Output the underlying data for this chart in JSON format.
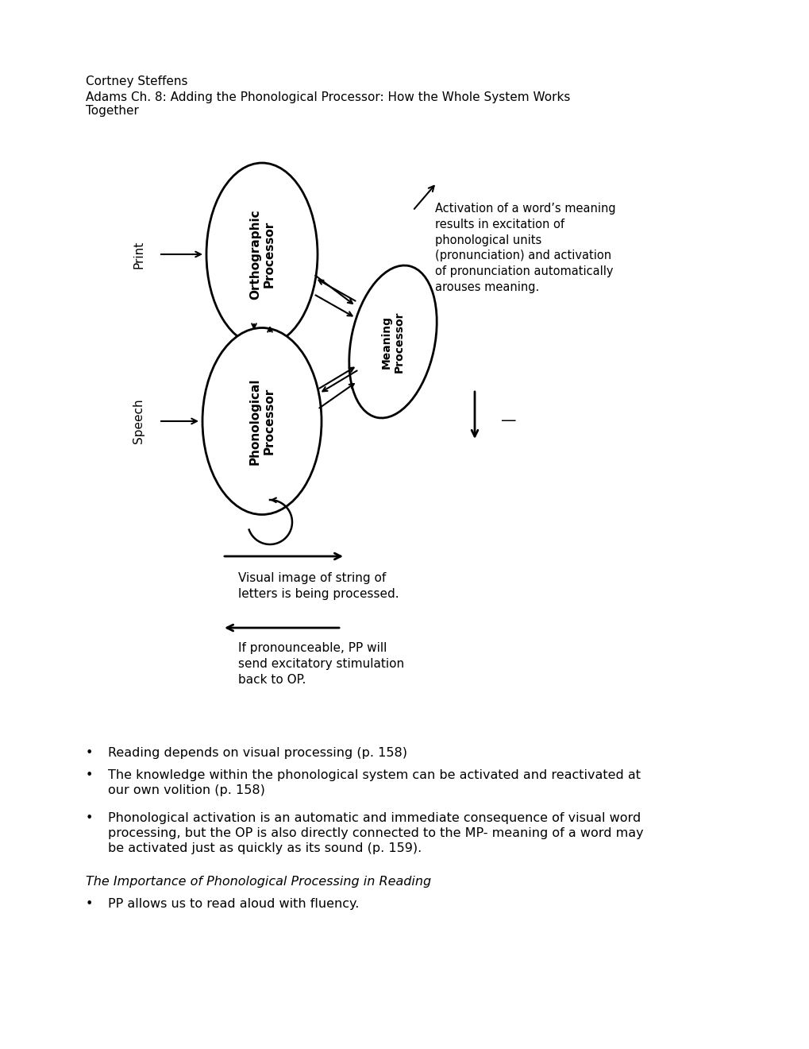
{
  "bg_color": "#ffffff",
  "header_name": "Cortney Steffens",
  "header_title": "Adams Ch. 8: Adding the Phonological Processor: How the Whole System Works\nTogether",
  "orth_label": "Orthographic\nProcessor",
  "phono_label": "Phonological\nProcessor",
  "meaning_label": "Meaning\nProcessor",
  "print_label": "Print",
  "speech_label": "Speech",
  "activation_text": "Activation of a word’s meaning\nresults in excitation of\nphonological units\n(pronunciation) and activation\nof pronunciation automatically\narouses meaning.",
  "arrow1_text": "Visual image of string of\nletters is being processed.",
  "arrow2_text": "If pronounceable, PP will\nsend excitatory stimulation\nback to OP.",
  "bullet1": "Reading depends on visual processing (p. 158)",
  "bullet2": "The knowledge within the phonological system can be activated and reactivated at\nour own volition (p. 158)",
  "bullet3": "Phonological activation is an automatic and immediate consequence of visual word\nprocessing, but the OP is also directly connected to the MP- meaning of a word may\nbe activated just as quickly as its sound (p. 159).",
  "italic_header": "The Importance of Phonological Processing in Reading",
  "bullet4": "PP allows us to read aloud with fluency.",
  "font_size_body": 11
}
